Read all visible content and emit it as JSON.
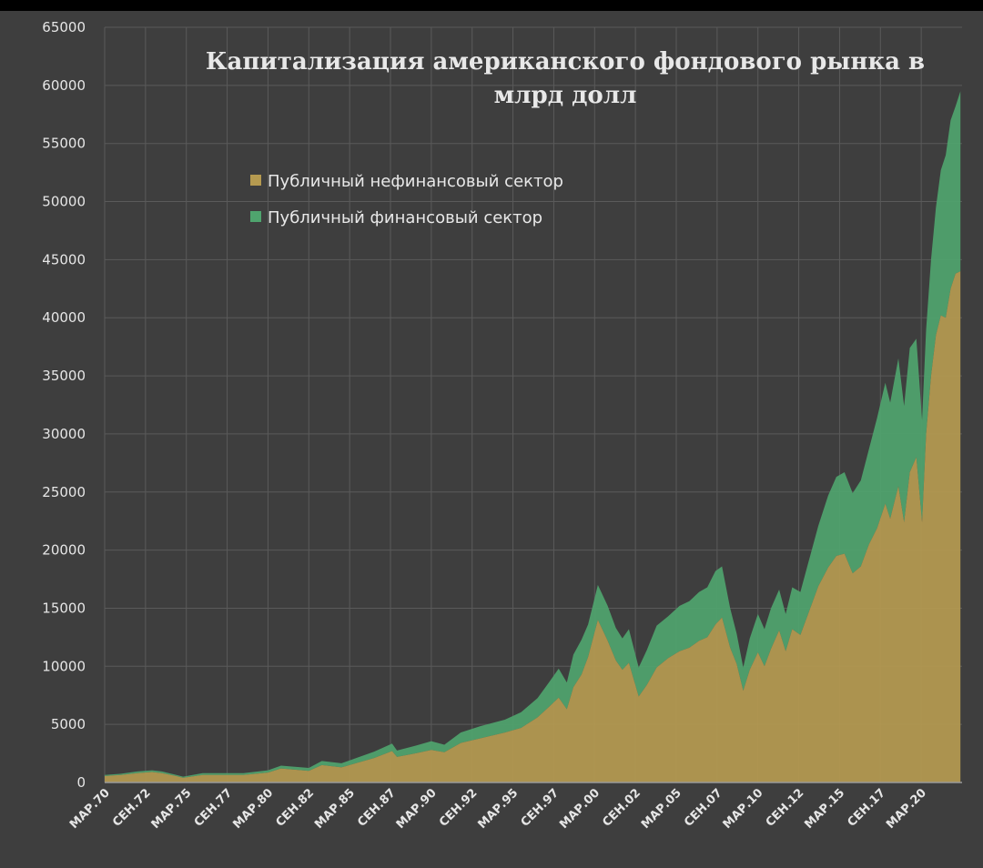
{
  "chart_data": {
    "type": "area",
    "stacked": true,
    "title_lines": [
      "Капитализация американского фондового рынка в",
      "млрд долл"
    ],
    "ylim": [
      0,
      65000
    ],
    "y_ticks": [
      0,
      5000,
      10000,
      15000,
      20000,
      25000,
      30000,
      35000,
      40000,
      45000,
      50000,
      55000,
      60000,
      65000
    ],
    "x_range": [
      1970.0,
      2022.5
    ],
    "x_tick_labels": [
      "МАР.70",
      "СЕН.72",
      "МАР.75",
      "СЕН.77",
      "МАР.80",
      "СЕН.82",
      "МАР.85",
      "СЕН.87",
      "МАР.90",
      "СЕН.92",
      "МАР.95",
      "СЕН.97",
      "МАР.00",
      "СЕН.02",
      "МАР.05",
      "СЕН.07",
      "МАР.10",
      "СЕН.12",
      "МАР.15",
      "СЕН.17",
      "МАР.20"
    ],
    "x_tick_positions": [
      1970.0,
      1972.5,
      1975.0,
      1977.5,
      1980.0,
      1982.5,
      1985.0,
      1987.5,
      1990.0,
      1992.5,
      1995.0,
      1997.5,
      2000.0,
      2002.5,
      2005.0,
      2007.5,
      2010.0,
      2012.5,
      2015.0,
      2017.5,
      2020.0
    ],
    "grid": true,
    "legend_position": "top-left",
    "x": [
      1970.0,
      1971.0,
      1972.0,
      1972.9,
      1973.5,
      1974.4,
      1974.8,
      1976.0,
      1977.5,
      1978.5,
      1980.0,
      1980.8,
      1982.5,
      1983.3,
      1984.5,
      1985.5,
      1986.5,
      1987.6,
      1987.9,
      1989.0,
      1990.0,
      1990.8,
      1991.8,
      1993.0,
      1994.5,
      1995.5,
      1996.5,
      1997.2,
      1997.8,
      1998.3,
      1998.7,
      1999.2,
      1999.6,
      2000.2,
      2000.8,
      2001.3,
      2001.7,
      2002.1,
      2002.7,
      2003.2,
      2003.8,
      2004.5,
      2005.2,
      2005.8,
      2006.4,
      2006.9,
      2007.4,
      2007.8,
      2008.3,
      2008.7,
      2009.1,
      2009.5,
      2010.0,
      2010.4,
      2010.8,
      2011.3,
      2011.7,
      2012.1,
      2012.6,
      2013.1,
      2013.7,
      2014.3,
      2014.8,
      2015.3,
      2015.8,
      2016.3,
      2016.8,
      2017.3,
      2017.8,
      2018.1,
      2018.6,
      2018.95,
      2019.3,
      2019.7,
      2020.05,
      2020.3,
      2020.6,
      2020.9,
      2021.2,
      2021.5,
      2021.8,
      2022.1,
      2022.4
    ],
    "series": [
      {
        "name": "Публичный нефинансовый сектор",
        "color": "#b59a50",
        "values": [
          550,
          650,
          800,
          900,
          800,
          550,
          400,
          650,
          650,
          650,
          850,
          1200,
          1000,
          1500,
          1300,
          1700,
          2100,
          2700,
          2200,
          2500,
          2800,
          2600,
          3400,
          3800,
          4300,
          4700,
          5600,
          6500,
          7300,
          6300,
          8200,
          9300,
          10800,
          14000,
          12200,
          10500,
          9700,
          10300,
          7400,
          8400,
          9900,
          10700,
          11300,
          11600,
          12200,
          12500,
          13600,
          14200,
          11600,
          10200,
          7900,
          9700,
          11200,
          10000,
          11500,
          13100,
          11300,
          13200,
          12700,
          14600,
          16900,
          18500,
          19500,
          19700,
          18000,
          18600,
          20500,
          21900,
          24000,
          22700,
          25500,
          22400,
          26700,
          28000,
          22400,
          30000,
          35000,
          38500,
          40200,
          40000,
          42500,
          43800,
          44000
        ]
      },
      {
        "name": "Публичный финансовый сектор",
        "color": "#4fa46e",
        "values": [
          100,
          100,
          150,
          150,
          150,
          100,
          100,
          150,
          150,
          150,
          200,
          250,
          250,
          350,
          350,
          450,
          550,
          650,
          550,
          650,
          750,
          650,
          900,
          1050,
          1100,
          1350,
          1650,
          2100,
          2500,
          2300,
          2800,
          3000,
          2800,
          3000,
          3000,
          2800,
          2700,
          2900,
          2500,
          3000,
          3600,
          3600,
          3900,
          4000,
          4200,
          4300,
          4600,
          4400,
          3400,
          2600,
          2000,
          2700,
          3300,
          3200,
          3500,
          3500,
          3200,
          3600,
          3700,
          4400,
          5200,
          6200,
          6800,
          7000,
          6900,
          7400,
          8200,
          9500,
          10400,
          10000,
          11000,
          10000,
          10700,
          10200,
          8800,
          9000,
          10000,
          11000,
          12500,
          14000,
          14500,
          14400,
          15500
        ]
      }
    ]
  }
}
